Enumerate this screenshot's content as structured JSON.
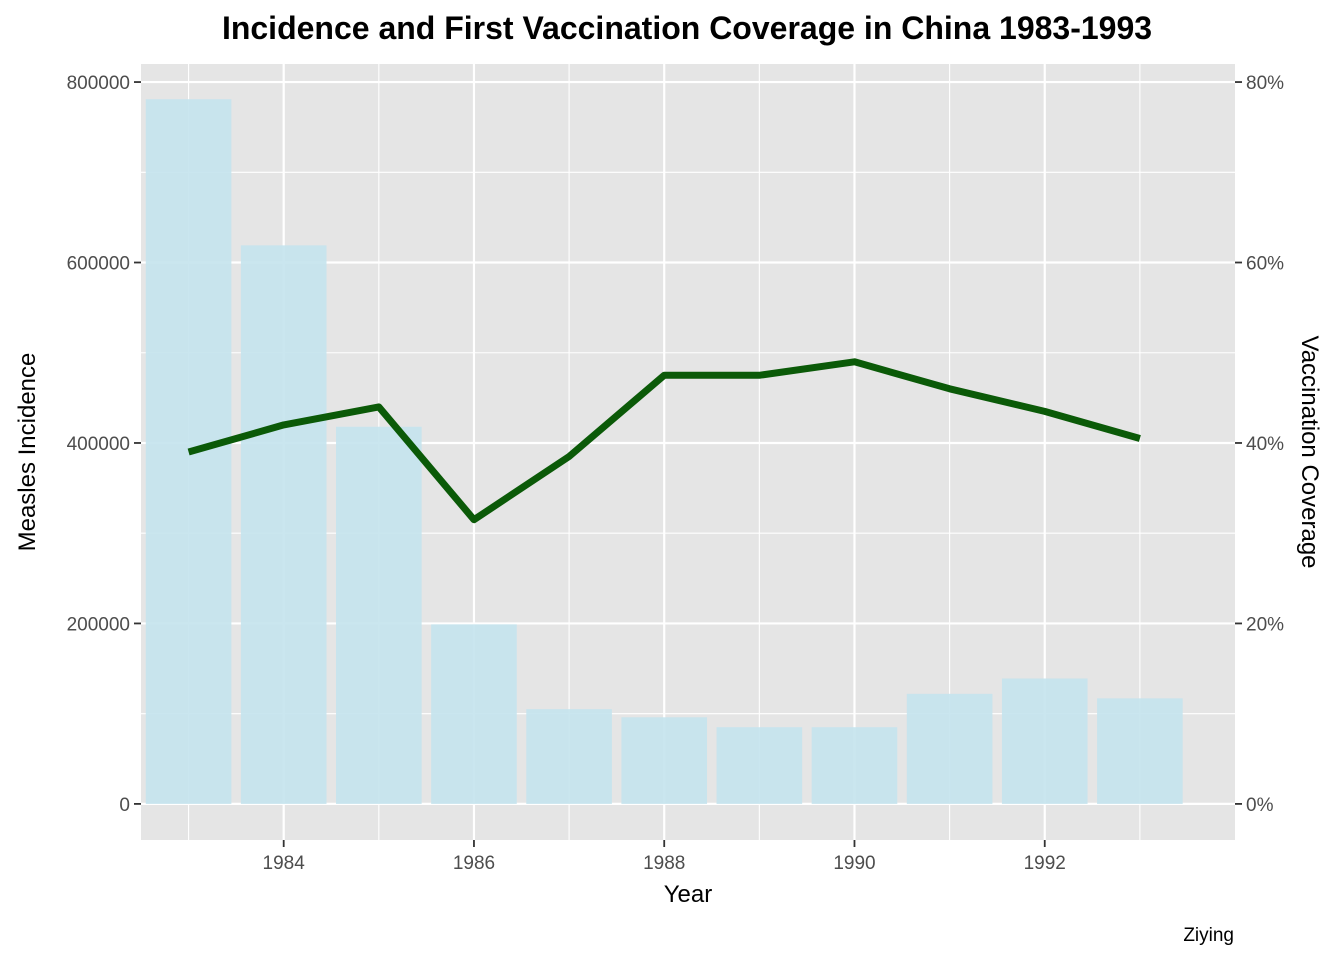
{
  "chart_data": {
    "type": "bar",
    "title": "Incidence and First Vaccination Coverage in China 1983-1993",
    "xlabel": "Year",
    "ylabel": "Measles Incidence",
    "y2label": "Vaccination Coverage",
    "caption": "Ziying",
    "x": [
      1983,
      1984,
      1985,
      1986,
      1987,
      1988,
      1989,
      1990,
      1991,
      1992,
      1993
    ],
    "x_ticks": [
      "1984",
      "1986",
      "1988",
      "1990",
      "1992"
    ],
    "xlim": [
      1982.5,
      1994.0
    ],
    "y_ticks": [
      "0",
      "200000",
      "400000",
      "600000",
      "800000"
    ],
    "ylim": [
      -40000,
      820000
    ],
    "y2_ticks": [
      "0%",
      "20%",
      "40%",
      "60%",
      "80%"
    ],
    "y2lim": [
      -0.04,
      0.82
    ],
    "grid": true,
    "series": [
      {
        "kind": "bar",
        "axis": "left",
        "values": [
          781000,
          619000,
          418000,
          199000,
          105000,
          96000,
          85000,
          85000,
          122000,
          139000,
          117000
        ],
        "color": "#c6e4ee"
      },
      {
        "kind": "line",
        "axis": "right",
        "values": [
          0.39,
          0.42,
          0.44,
          0.315,
          0.385,
          0.475,
          0.475,
          0.49,
          0.46,
          0.435,
          0.405
        ],
        "color": "#0b5a08"
      }
    ],
    "colors": {
      "panel_background": "#e5e5e5",
      "grid_major": "#ffffff",
      "bar_fill": "#c6e4ee",
      "line": "#0b5a08",
      "tick_mark": "#333333"
    }
  }
}
